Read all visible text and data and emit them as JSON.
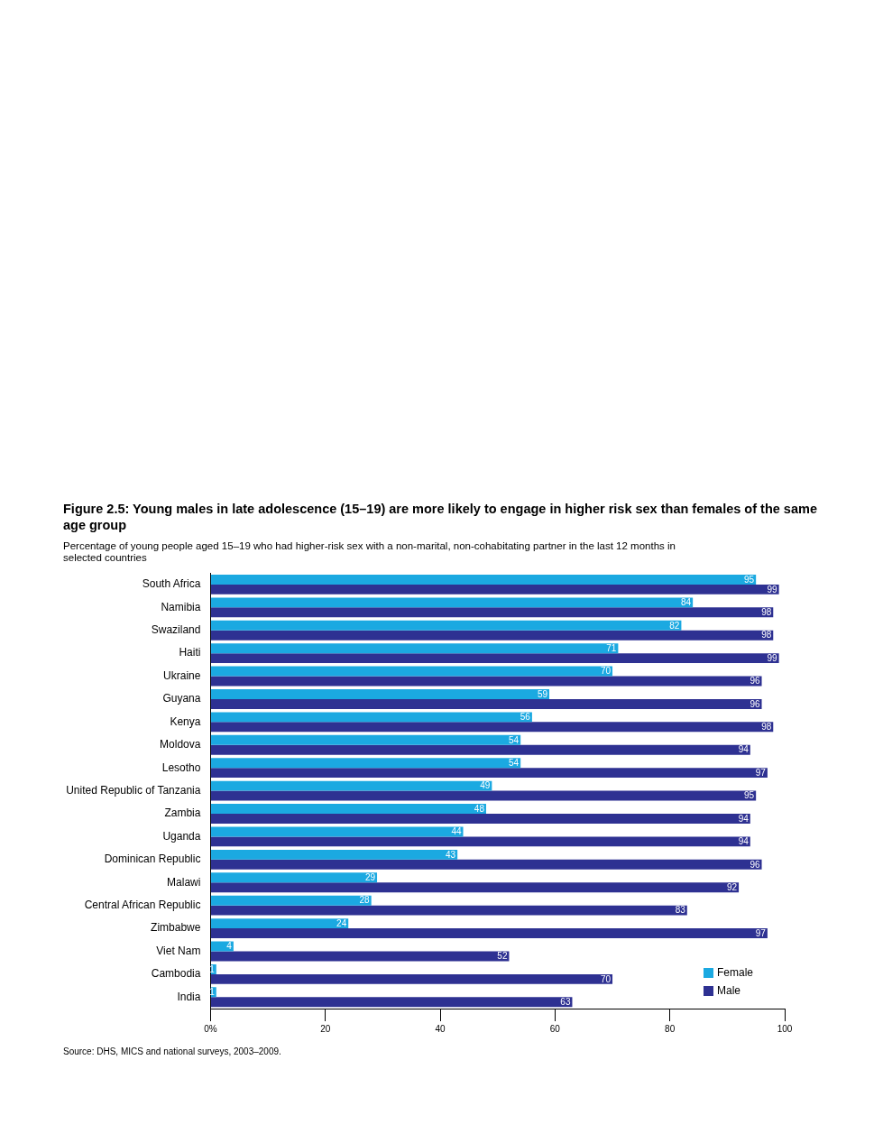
{
  "chart_data": {
    "type": "bar",
    "orientation": "horizontal",
    "title": "Figure 2.5: Young males in late adolescence (15–19) are more likely to engage in higher risk sex than females of the same age group",
    "subtitle": "Percentage of young people aged 15–19 who had higher-risk sex with a non-marital, non-cohabitating partner in the last 12 months in selected countries",
    "categories": [
      "South Africa",
      "Namibia",
      "Swaziland",
      "Haiti",
      "Ukraine",
      "Guyana",
      "Kenya",
      "Moldova",
      "Lesotho",
      "United Republic of Tanzania",
      "Zambia",
      "Uganda",
      "Dominican Republic",
      "Malawi",
      "Central African Republic",
      "Zimbabwe",
      "Viet Nam",
      "Cambodia",
      "India"
    ],
    "series": [
      {
        "name": "Female",
        "color": "#1ba9e1",
        "values": [
          95,
          84,
          82,
          71,
          70,
          59,
          56,
          54,
          54,
          49,
          48,
          44,
          43,
          29,
          28,
          24,
          4,
          1,
          1
        ]
      },
      {
        "name": "Male",
        "color": "#2e3192",
        "values": [
          99,
          98,
          98,
          99,
          96,
          96,
          98,
          94,
          97,
          95,
          94,
          94,
          96,
          92,
          83,
          97,
          52,
          70,
          63
        ]
      }
    ],
    "xlim": [
      0,
      100
    ],
    "xticks": [
      {
        "value": 0,
        "label": "0%"
      },
      20,
      40,
      60,
      80,
      100
    ],
    "data_labels": true,
    "grid": false,
    "legend": "bottom right",
    "annotations": [
      "Source: DHS, MICS and national surveys, 2003–2009."
    ]
  }
}
